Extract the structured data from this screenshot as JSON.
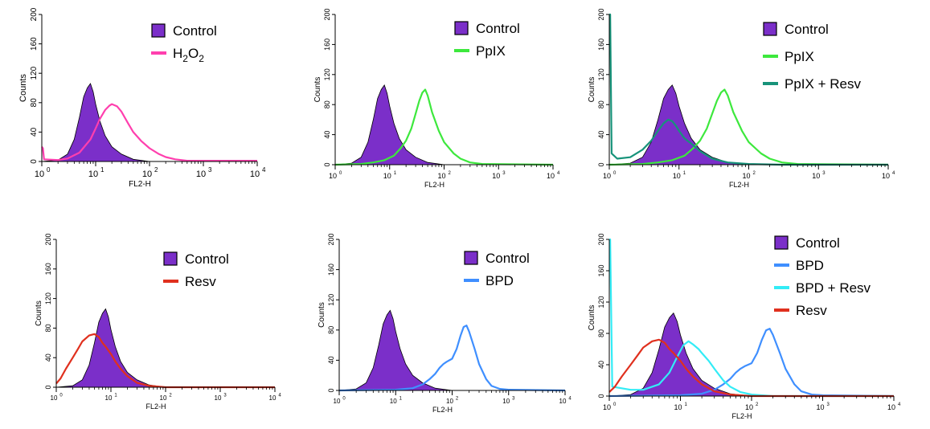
{
  "colors": {
    "control_fill": "#7b2fc9",
    "h2o2": "#ff3fae",
    "ppix": "#3de83d",
    "ppix_resv": "#17937a",
    "resv": "#e0301e",
    "bpd": "#3f8fff",
    "bpd_resv": "#33ecf6"
  },
  "chart_data": [
    {
      "type": "area",
      "panel": "h2o2",
      "xlabel": "FL2-H",
      "ylabel": "Counts",
      "x_scale": "log",
      "xlim": [
        1,
        10000
      ],
      "ylim": [
        0,
        200
      ],
      "x_ticks": [
        "10",
        "10",
        "10",
        "10",
        "10"
      ],
      "x_tick_exp": [
        "0",
        "1",
        "2",
        "3",
        "4"
      ],
      "y_ticks": [
        "0",
        "40",
        "80",
        "120",
        "160",
        "200"
      ],
      "legend": [
        {
          "label": "Control",
          "sub": "",
          "label2": "",
          "sub2": "",
          "marker": "box",
          "color": "#7b2fc9"
        },
        {
          "label": "H",
          "sub": "2",
          "label2": "O",
          "sub2": "2",
          "marker": "line",
          "color": "#ff3fae"
        }
      ],
      "series": [
        {
          "name": "Control",
          "filled": true,
          "color": "#7b2fc9",
          "x": [
            1,
            2,
            3,
            4,
            5,
            6,
            7,
            8,
            9,
            10,
            12,
            15,
            20,
            30,
            50,
            100
          ],
          "y": [
            0,
            2,
            10,
            30,
            60,
            88,
            100,
            106,
            95,
            78,
            55,
            35,
            20,
            10,
            3,
            0
          ]
        },
        {
          "name": "H2O2",
          "filled": false,
          "color": "#ff3fae",
          "x": [
            1,
            1.05,
            1.1,
            2,
            3,
            5,
            8,
            10,
            12,
            15,
            18,
            20,
            25,
            30,
            40,
            50,
            70,
            100,
            150,
            200,
            300,
            500,
            10000
          ],
          "y": [
            20,
            18,
            3,
            2,
            4,
            12,
            30,
            45,
            58,
            70,
            76,
            78,
            75,
            68,
            52,
            40,
            28,
            18,
            10,
            6,
            3,
            1,
            1
          ]
        }
      ]
    },
    {
      "type": "area",
      "panel": "ppix",
      "xlabel": "FL2-H",
      "ylabel": "Counts",
      "x_scale": "log",
      "xlim": [
        1,
        10000
      ],
      "ylim": [
        0,
        200
      ],
      "x_ticks": [
        "10",
        "10",
        "10",
        "10",
        "10"
      ],
      "x_tick_exp": [
        "0",
        "1",
        "2",
        "3",
        "4"
      ],
      "y_ticks": [
        "0",
        "40",
        "80",
        "120",
        "160",
        "200"
      ],
      "legend": [
        {
          "label": "Control",
          "sub": "",
          "label2": "",
          "sub2": "",
          "marker": "box",
          "color": "#7b2fc9"
        },
        {
          "label": "PpIX",
          "sub": "",
          "label2": "",
          "sub2": "",
          "marker": "line",
          "color": "#3de83d"
        }
      ],
      "series": [
        {
          "name": "Control",
          "filled": true,
          "color": "#7b2fc9",
          "x": [
            1,
            2,
            3,
            4,
            5,
            6,
            7,
            8,
            9,
            10,
            12,
            15,
            20,
            30,
            50,
            100
          ],
          "y": [
            0,
            2,
            10,
            30,
            60,
            88,
            100,
            106,
            95,
            78,
            55,
            35,
            20,
            10,
            3,
            0
          ]
        },
        {
          "name": "PpIX",
          "filled": false,
          "color": "#3de83d",
          "x": [
            1,
            3,
            5,
            8,
            12,
            16,
            20,
            25,
            30,
            35,
            40,
            45,
            50,
            60,
            80,
            100,
            150,
            200,
            300,
            500,
            10000
          ],
          "y": [
            0,
            1,
            3,
            6,
            12,
            22,
            32,
            48,
            68,
            85,
            96,
            100,
            92,
            70,
            45,
            30,
            15,
            8,
            3,
            1,
            0
          ]
        }
      ]
    },
    {
      "type": "area",
      "panel": "ppix_resv",
      "xlabel": "FL2-H",
      "ylabel": "Counts",
      "x_scale": "log",
      "xlim": [
        1,
        10000
      ],
      "ylim": [
        0,
        200
      ],
      "x_ticks": [
        "10",
        "10",
        "10",
        "10",
        "10"
      ],
      "x_tick_exp": [
        "0",
        "1",
        "2",
        "3",
        "4"
      ],
      "y_ticks": [
        "0",
        "40",
        "80",
        "120",
        "160",
        "200"
      ],
      "legend": [
        {
          "label": "Control",
          "sub": "",
          "label2": "",
          "sub2": "",
          "marker": "box",
          "color": "#7b2fc9"
        },
        {
          "label": "PpIX",
          "sub": "",
          "label2": "",
          "sub2": "",
          "marker": "line",
          "color": "#3de83d"
        },
        {
          "label": "PpIX + Resv",
          "sub": "",
          "label2": "",
          "sub2": "",
          "marker": "line",
          "color": "#17937a"
        }
      ],
      "series": [
        {
          "name": "Control",
          "filled": true,
          "color": "#7b2fc9",
          "x": [
            1,
            2,
            3,
            4,
            5,
            6,
            7,
            8,
            9,
            10,
            12,
            15,
            20,
            30,
            50,
            100
          ],
          "y": [
            0,
            2,
            10,
            30,
            60,
            88,
            100,
            106,
            95,
            78,
            55,
            35,
            20,
            10,
            3,
            0
          ]
        },
        {
          "name": "PpIX",
          "filled": false,
          "color": "#3de83d",
          "x": [
            1,
            3,
            5,
            8,
            12,
            16,
            20,
            25,
            30,
            35,
            40,
            45,
            50,
            60,
            80,
            100,
            150,
            200,
            300,
            500,
            10000
          ],
          "y": [
            0,
            1,
            3,
            6,
            12,
            22,
            32,
            48,
            68,
            85,
            96,
            100,
            92,
            70,
            45,
            30,
            15,
            8,
            3,
            1,
            0
          ]
        },
        {
          "name": "PpIX + Resv",
          "filled": false,
          "color": "#17937a",
          "x": [
            1,
            1.03,
            1.08,
            1.3,
            2,
            3,
            4,
            5,
            6,
            7,
            8,
            9,
            10,
            12,
            15,
            20,
            30,
            50,
            100,
            300,
            10000
          ],
          "y": [
            200,
            200,
            15,
            8,
            10,
            20,
            32,
            45,
            55,
            60,
            58,
            52,
            45,
            35,
            28,
            18,
            8,
            3,
            1,
            0,
            0
          ]
        }
      ]
    },
    {
      "type": "area",
      "panel": "resv",
      "xlabel": "FL2-H",
      "ylabel": "Counts",
      "x_scale": "log",
      "xlim": [
        1,
        10000
      ],
      "ylim": [
        0,
        200
      ],
      "x_ticks": [
        "10",
        "10",
        "10",
        "10",
        "10"
      ],
      "x_tick_exp": [
        "0",
        "1",
        "2",
        "3",
        "4"
      ],
      "y_ticks": [
        "0",
        "40",
        "80",
        "120",
        "160",
        "200"
      ],
      "legend": [
        {
          "label": "Control",
          "sub": "",
          "label2": "",
          "sub2": "",
          "marker": "box",
          "color": "#7b2fc9"
        },
        {
          "label": "Resv",
          "sub": "",
          "label2": "",
          "sub2": "",
          "marker": "line",
          "color": "#e0301e"
        }
      ],
      "series": [
        {
          "name": "Control",
          "filled": true,
          "color": "#7b2fc9",
          "x": [
            1,
            2,
            3,
            4,
            5,
            6,
            7,
            8,
            9,
            10,
            12,
            15,
            20,
            30,
            50,
            100
          ],
          "y": [
            0,
            2,
            10,
            30,
            60,
            88,
            100,
            106,
            95,
            78,
            55,
            35,
            20,
            10,
            3,
            0
          ]
        },
        {
          "name": "Resv",
          "filled": false,
          "color": "#e0301e",
          "x": [
            1,
            1.2,
            1.5,
            2,
            2.5,
            3,
            4,
            5,
            6,
            7,
            8,
            10,
            12,
            15,
            20,
            30,
            50,
            100,
            10000
          ],
          "y": [
            5,
            12,
            25,
            40,
            52,
            62,
            70,
            72,
            68,
            60,
            55,
            45,
            35,
            25,
            15,
            6,
            2,
            0,
            0
          ]
        }
      ]
    },
    {
      "type": "area",
      "panel": "bpd",
      "xlabel": "FL2-H",
      "ylabel": "Counts",
      "x_scale": "log",
      "xlim": [
        1,
        10000
      ],
      "ylim": [
        0,
        200
      ],
      "x_ticks": [
        "10",
        "10",
        "10",
        "10",
        "10"
      ],
      "x_tick_exp": [
        "0",
        "1",
        "2",
        "3",
        "4"
      ],
      "y_ticks": [
        "0",
        "40",
        "80",
        "120",
        "160",
        "200"
      ],
      "legend": [
        {
          "label": "Control",
          "sub": "",
          "label2": "",
          "sub2": "",
          "marker": "box",
          "color": "#7b2fc9"
        },
        {
          "label": "BPD",
          "sub": "",
          "label2": "",
          "sub2": "",
          "marker": "line",
          "color": "#3f8fff"
        }
      ],
      "series": [
        {
          "name": "Control",
          "filled": true,
          "color": "#7b2fc9",
          "x": [
            1,
            2,
            3,
            4,
            5,
            6,
            7,
            8,
            9,
            10,
            12,
            15,
            20,
            30,
            50,
            100
          ],
          "y": [
            0,
            2,
            10,
            30,
            60,
            88,
            100,
            106,
            95,
            78,
            55,
            35,
            20,
            10,
            3,
            0
          ]
        },
        {
          "name": "BPD",
          "filled": false,
          "color": "#3f8fff",
          "x": [
            1,
            10,
            20,
            30,
            40,
            50,
            60,
            70,
            80,
            100,
            120,
            140,
            160,
            180,
            200,
            250,
            300,
            400,
            500,
            700,
            1000,
            10000
          ],
          "y": [
            0,
            1,
            3,
            8,
            15,
            22,
            30,
            35,
            38,
            42,
            55,
            72,
            84,
            86,
            78,
            55,
            35,
            15,
            6,
            2,
            1,
            0
          ]
        }
      ]
    },
    {
      "type": "area",
      "panel": "bpd_resv",
      "xlabel": "FL2-H",
      "ylabel": "Counts",
      "x_scale": "log",
      "xlim": [
        1,
        10000
      ],
      "ylim": [
        0,
        200
      ],
      "x_ticks": [
        "10",
        "10",
        "10",
        "10",
        "10"
      ],
      "x_tick_exp": [
        "0",
        "1",
        "2",
        "3",
        "4"
      ],
      "y_ticks": [
        "0",
        "40",
        "80",
        "120",
        "160",
        "200"
      ],
      "legend": [
        {
          "label": "Control",
          "sub": "",
          "label2": "",
          "sub2": "",
          "marker": "box",
          "color": "#7b2fc9"
        },
        {
          "label": "BPD",
          "sub": "",
          "label2": "",
          "sub2": "",
          "marker": "line",
          "color": "#3f8fff"
        },
        {
          "label": "BPD + Resv",
          "sub": "",
          "label2": "",
          "sub2": "",
          "marker": "line",
          "color": "#33ecf6"
        },
        {
          "label": "Resv",
          "sub": "",
          "label2": "",
          "sub2": "",
          "marker": "line",
          "color": "#e0301e"
        }
      ],
      "series": [
        {
          "name": "Control",
          "filled": true,
          "color": "#7b2fc9",
          "x": [
            1,
            2,
            3,
            4,
            5,
            6,
            7,
            8,
            9,
            10,
            12,
            15,
            20,
            30,
            50,
            100
          ],
          "y": [
            0,
            2,
            10,
            30,
            60,
            88,
            100,
            106,
            95,
            78,
            55,
            35,
            20,
            10,
            3,
            0
          ]
        },
        {
          "name": "BPD",
          "filled": false,
          "color": "#3f8fff",
          "x": [
            1,
            10,
            20,
            30,
            40,
            50,
            60,
            70,
            80,
            100,
            120,
            140,
            160,
            180,
            200,
            250,
            300,
            400,
            500,
            700,
            1000,
            10000
          ],
          "y": [
            0,
            1,
            3,
            8,
            15,
            22,
            30,
            35,
            38,
            42,
            55,
            72,
            84,
            86,
            78,
            55,
            35,
            15,
            6,
            2,
            1,
            0
          ]
        },
        {
          "name": "BPD + Resv",
          "filled": false,
          "color": "#33ecf6",
          "x": [
            1,
            1.03,
            1.1,
            2,
            3,
            5,
            7,
            9,
            11,
            13,
            15,
            18,
            20,
            25,
            30,
            40,
            50,
            70,
            100,
            200,
            10000
          ],
          "y": [
            200,
            200,
            12,
            8,
            8,
            15,
            30,
            50,
            65,
            70,
            66,
            60,
            55,
            45,
            35,
            20,
            12,
            5,
            2,
            0,
            0
          ]
        },
        {
          "name": "Resv",
          "filled": false,
          "color": "#e0301e",
          "x": [
            1,
            1.2,
            1.5,
            2,
            2.5,
            3,
            4,
            5,
            6,
            7,
            8,
            10,
            12,
            15,
            20,
            30,
            50,
            100,
            10000
          ],
          "y": [
            5,
            12,
            25,
            40,
            52,
            62,
            70,
            72,
            68,
            60,
            55,
            45,
            35,
            25,
            15,
            6,
            2,
            0,
            0
          ]
        }
      ]
    }
  ]
}
